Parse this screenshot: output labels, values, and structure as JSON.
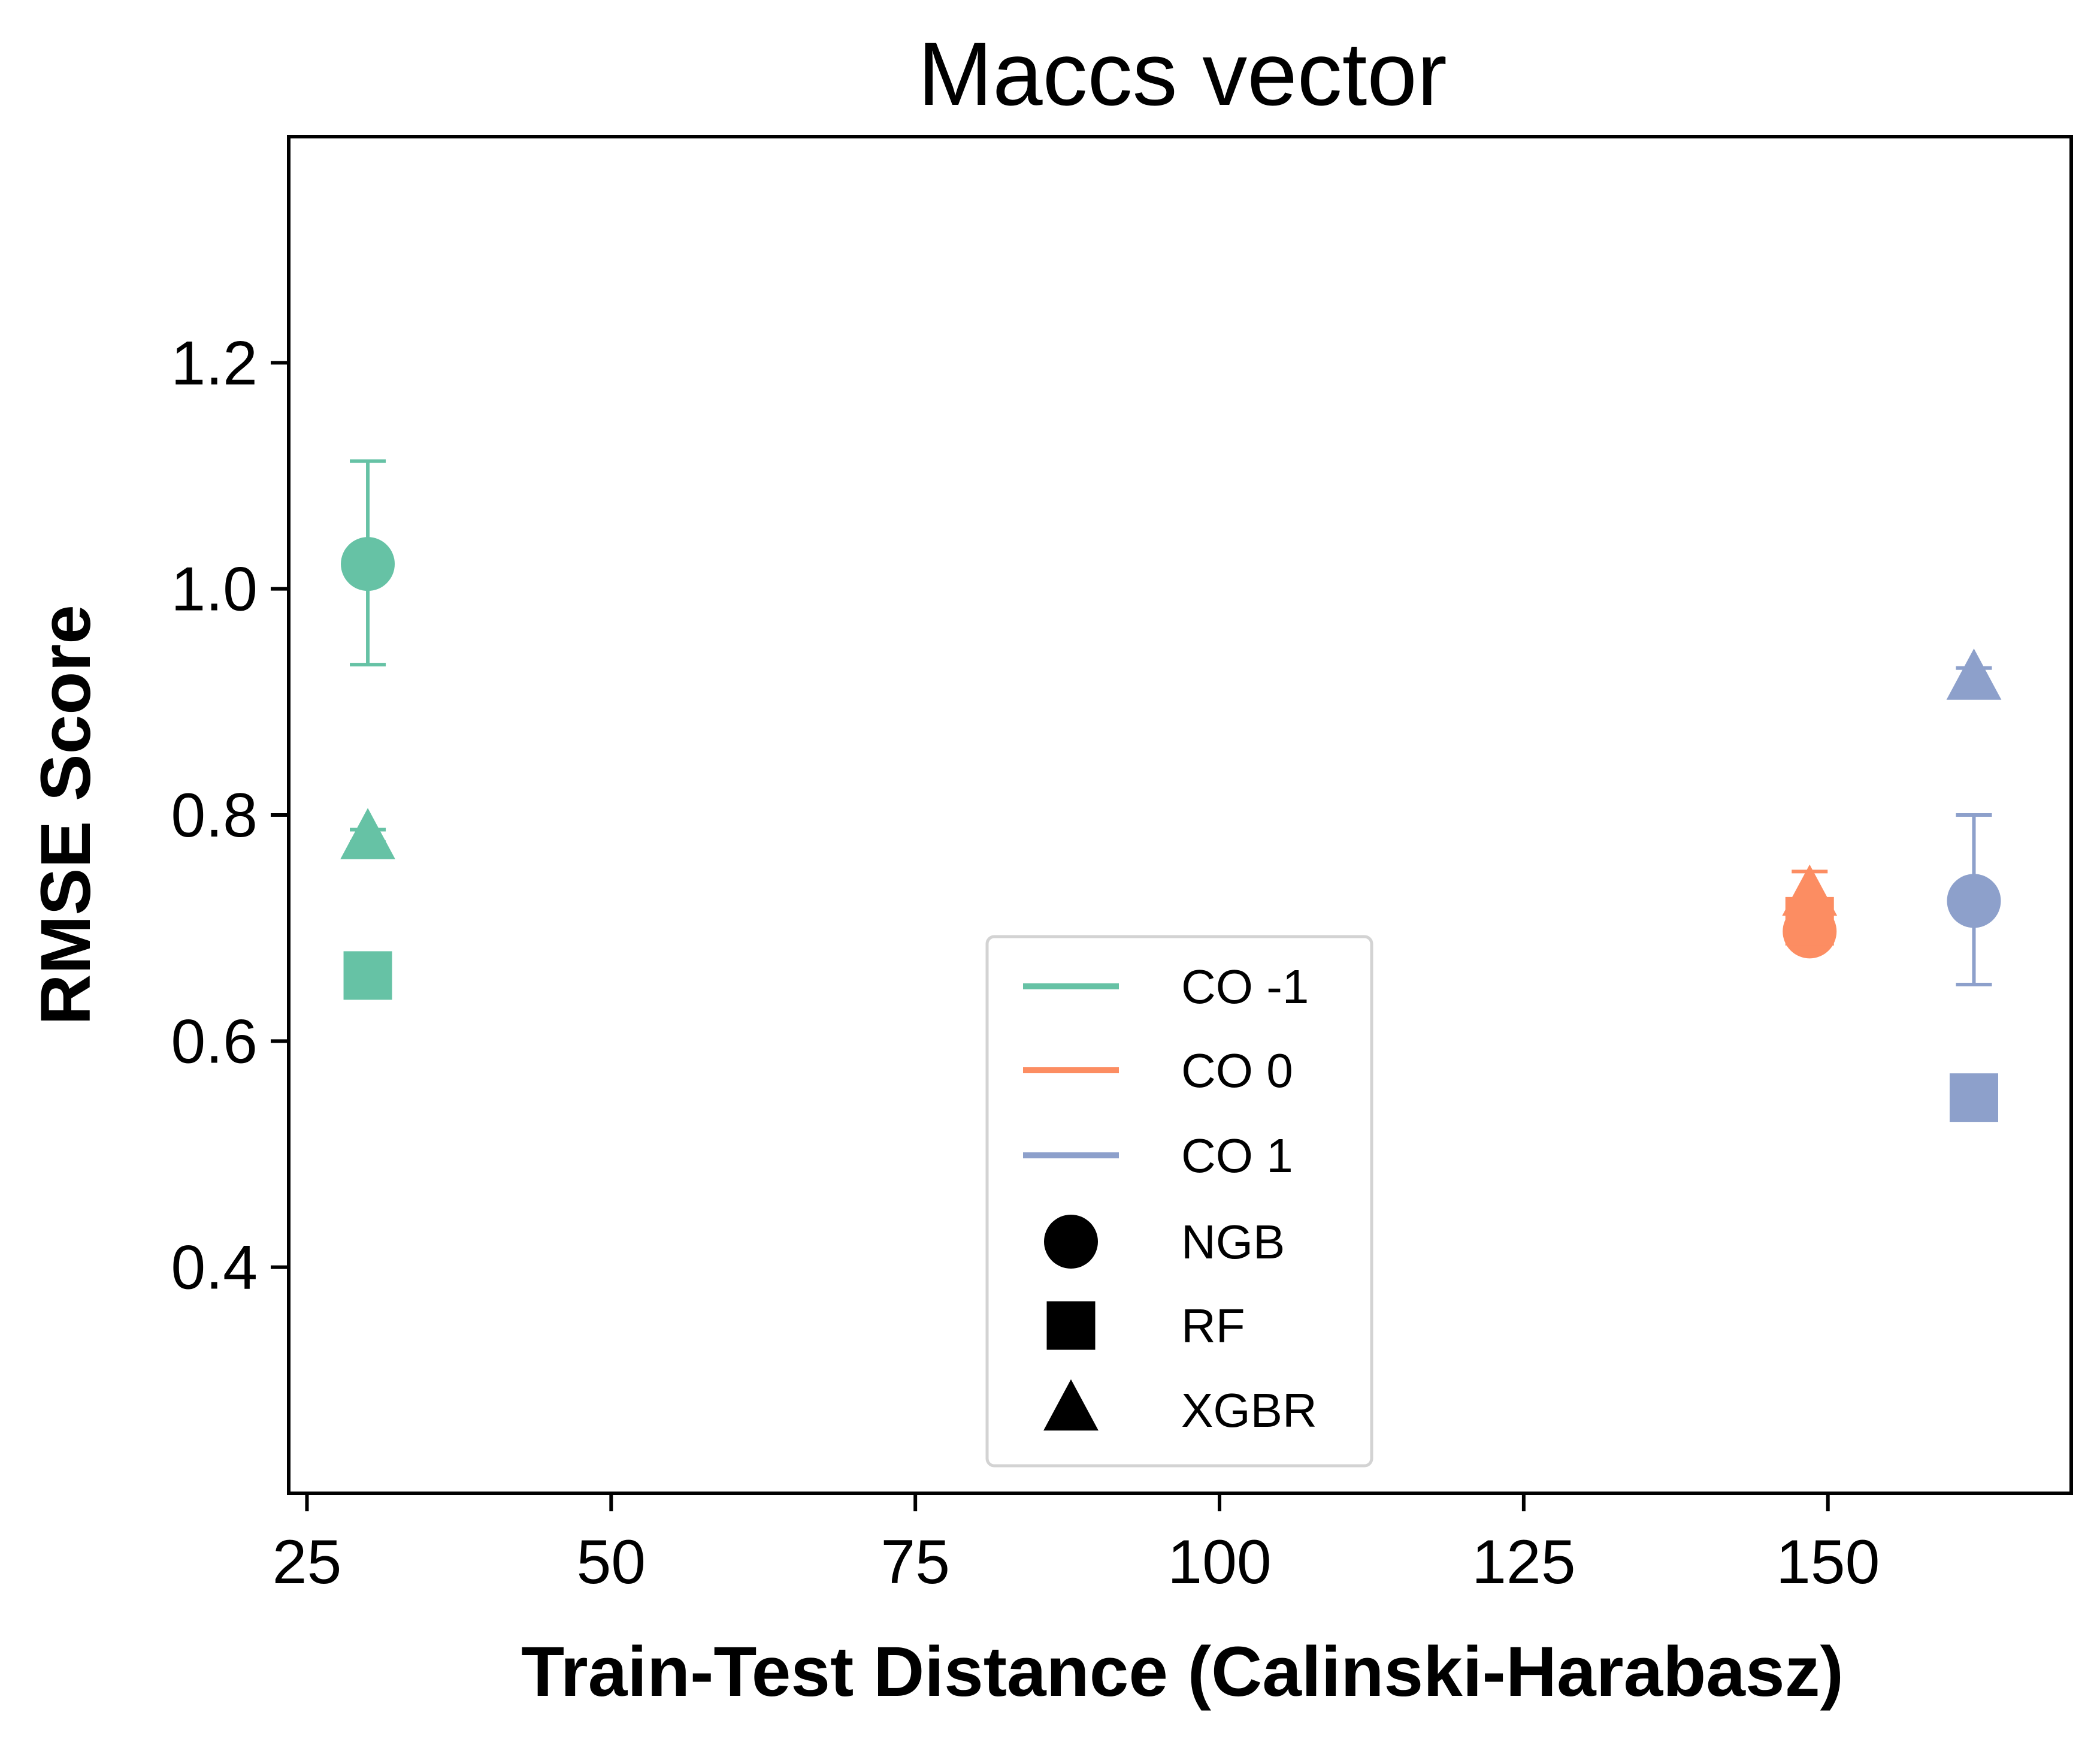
{
  "chart_data": {
    "type": "scatter",
    "title": "Maccs vector",
    "xlabel": "Train-Test Distance (Calinski-Harabasz)",
    "ylabel": "RMSE Score",
    "xlim": [
      23.5,
      170
    ],
    "ylim": [
      0.2,
      1.4
    ],
    "xticks": [
      25,
      50,
      75,
      100,
      125,
      150
    ],
    "xtick_labels": [
      "25",
      "50",
      "75",
      "100",
      "125",
      "150"
    ],
    "yticks": [
      0.4,
      0.6,
      0.8,
      1.0,
      1.2
    ],
    "ytick_labels": [
      "0.4",
      "0.6",
      "0.8",
      "1.0",
      "1.2"
    ],
    "grid": false,
    "legend_position": "bottom-center",
    "series": [
      {
        "name": "CO -1",
        "color": "#66c2a5",
        "points": [
          {
            "model": "NGB",
            "x": 30,
            "y": 1.022,
            "yerr_low": 0.933,
            "yerr_high": 1.113
          },
          {
            "model": "RF",
            "x": 30,
            "y": 0.658
          },
          {
            "model": "XGBR",
            "x": 30,
            "y": 0.779,
            "yerr_low": 0.776,
            "yerr_high": 0.787
          }
        ]
      },
      {
        "name": "CO 0",
        "color": "#fc8d62",
        "points": [
          {
            "model": "NGB",
            "x": 148.5,
            "y": 0.697
          },
          {
            "model": "RF",
            "x": 148.5,
            "y": 0.706
          },
          {
            "model": "XGBR",
            "x": 148.5,
            "y": 0.729,
            "yerr_low": 0.71,
            "yerr_high": 0.75
          }
        ]
      },
      {
        "name": "CO 1",
        "color": "#8da0cb",
        "points": [
          {
            "model": "NGB",
            "x": 162,
            "y": 0.724,
            "yerr_low": 0.65,
            "yerr_high": 0.8
          },
          {
            "model": "RF",
            "x": 162,
            "y": 0.55
          },
          {
            "model": "XGBR",
            "x": 162,
            "y": 0.92,
            "yerr_low": 0.915,
            "yerr_high": 0.93
          }
        ]
      }
    ],
    "legend": {
      "colors": [
        {
          "label": "CO -1",
          "color": "#66c2a5"
        },
        {
          "label": "CO 0",
          "color": "#fc8d62"
        },
        {
          "label": "CO 1",
          "color": "#8da0cb"
        }
      ],
      "markers": [
        {
          "label": "NGB",
          "marker": "circle",
          "color": "#000000"
        },
        {
          "label": "RF",
          "marker": "square",
          "color": "#000000"
        },
        {
          "label": "XGBR",
          "marker": "triangle",
          "color": "#000000"
        }
      ]
    }
  }
}
